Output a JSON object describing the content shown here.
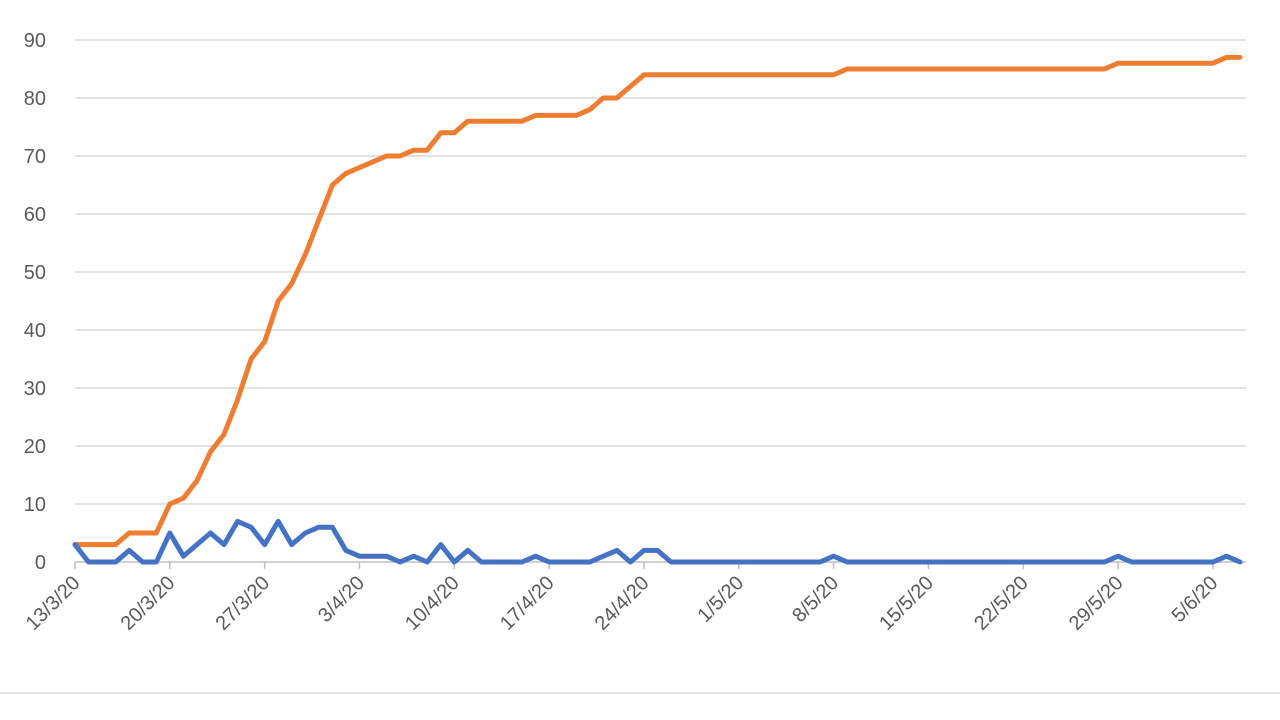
{
  "chart_data": {
    "type": "line",
    "title": "",
    "xlabel": "",
    "ylabel": "",
    "ylim": [
      0,
      90
    ],
    "yticks": [
      0,
      10,
      20,
      30,
      40,
      50,
      60,
      70,
      80,
      90
    ],
    "xtick_labels": [
      "13/3/20",
      "20/3/20",
      "27/3/20",
      "3/4/20",
      "10/4/20",
      "17/4/20",
      "24/4/20",
      "1/5/20",
      "8/5/20",
      "15/5/20",
      "22/5/20",
      "29/5/20",
      "5/6/20"
    ],
    "grid": true,
    "legend": "none",
    "x_start": "13/3/20",
    "x_end": "7/6/20",
    "series": [
      {
        "color": "#ed7d31",
        "points": [
          [
            "13/3/20",
            3
          ],
          [
            "14/3/20",
            3
          ],
          [
            "15/3/20",
            3
          ],
          [
            "16/3/20",
            3
          ],
          [
            "17/3/20",
            5
          ],
          [
            "18/3/20",
            5
          ],
          [
            "19/3/20",
            5
          ],
          [
            "20/3/20",
            10
          ],
          [
            "21/3/20",
            11
          ],
          [
            "22/3/20",
            14
          ],
          [
            "23/3/20",
            19
          ],
          [
            "24/3/20",
            22
          ],
          [
            "25/3/20",
            28
          ],
          [
            "26/3/20",
            35
          ],
          [
            "27/3/20",
            38
          ],
          [
            "28/3/20",
            45
          ],
          [
            "29/3/20",
            48
          ],
          [
            "30/3/20",
            53
          ],
          [
            "31/3/20",
            59
          ],
          [
            "1/4/20",
            65
          ],
          [
            "2/4/20",
            67
          ],
          [
            "3/4/20",
            68
          ],
          [
            "4/4/20",
            69
          ],
          [
            "5/4/20",
            70
          ],
          [
            "6/4/20",
            70
          ],
          [
            "7/4/20",
            71
          ],
          [
            "8/4/20",
            71
          ],
          [
            "9/4/20",
            74
          ],
          [
            "10/4/20",
            74
          ],
          [
            "11/4/20",
            76
          ],
          [
            "12/4/20",
            76
          ],
          [
            "13/4/20",
            76
          ],
          [
            "14/4/20",
            76
          ],
          [
            "15/4/20",
            76
          ],
          [
            "16/4/20",
            77
          ],
          [
            "17/4/20",
            77
          ],
          [
            "18/4/20",
            77
          ],
          [
            "19/4/20",
            77
          ],
          [
            "20/4/20",
            78
          ],
          [
            "21/4/20",
            80
          ],
          [
            "22/4/20",
            80
          ],
          [
            "23/4/20",
            82
          ],
          [
            "24/4/20",
            84
          ],
          [
            "8/5/20",
            84
          ],
          [
            "9/5/20",
            85
          ],
          [
            "28/5/20",
            85
          ],
          [
            "29/5/20",
            86
          ],
          [
            "5/6/20",
            86
          ],
          [
            "6/6/20",
            87
          ],
          [
            "7/6/20",
            87
          ]
        ]
      },
      {
        "color": "#4472c4",
        "points": [
          [
            "13/3/20",
            3
          ],
          [
            "14/3/20",
            0
          ],
          [
            "15/3/20",
            0
          ],
          [
            "16/3/20",
            0
          ],
          [
            "17/3/20",
            2
          ],
          [
            "18/3/20",
            0
          ],
          [
            "19/3/20",
            0
          ],
          [
            "20/3/20",
            5
          ],
          [
            "21/3/20",
            1
          ],
          [
            "22/3/20",
            3
          ],
          [
            "23/3/20",
            5
          ],
          [
            "24/3/20",
            3
          ],
          [
            "25/3/20",
            7
          ],
          [
            "26/3/20",
            6
          ],
          [
            "27/3/20",
            3
          ],
          [
            "28/3/20",
            7
          ],
          [
            "29/3/20",
            3
          ],
          [
            "30/3/20",
            5
          ],
          [
            "31/3/20",
            6
          ],
          [
            "1/4/20",
            6
          ],
          [
            "2/4/20",
            2
          ],
          [
            "3/4/20",
            1
          ],
          [
            "4/4/20",
            1
          ],
          [
            "5/4/20",
            1
          ],
          [
            "6/4/20",
            0
          ],
          [
            "7/4/20",
            1
          ],
          [
            "8/4/20",
            0
          ],
          [
            "9/4/20",
            3
          ],
          [
            "10/4/20",
            0
          ],
          [
            "11/4/20",
            2
          ],
          [
            "12/4/20",
            0
          ],
          [
            "15/4/20",
            0
          ],
          [
            "16/4/20",
            1
          ],
          [
            "17/4/20",
            0
          ],
          [
            "20/4/20",
            0
          ],
          [
            "21/4/20",
            1
          ],
          [
            "22/4/20",
            2
          ],
          [
            "23/4/20",
            0
          ],
          [
            "24/4/20",
            2
          ],
          [
            "25/4/20",
            2
          ],
          [
            "26/4/20",
            0
          ],
          [
            "7/5/20",
            0
          ],
          [
            "8/5/20",
            1
          ],
          [
            "9/5/20",
            0
          ],
          [
            "28/5/20",
            0
          ],
          [
            "29/5/20",
            1
          ],
          [
            "30/5/20",
            0
          ],
          [
            "5/6/20",
            0
          ],
          [
            "6/6/20",
            1
          ],
          [
            "7/6/20",
            0
          ]
        ]
      }
    ]
  }
}
